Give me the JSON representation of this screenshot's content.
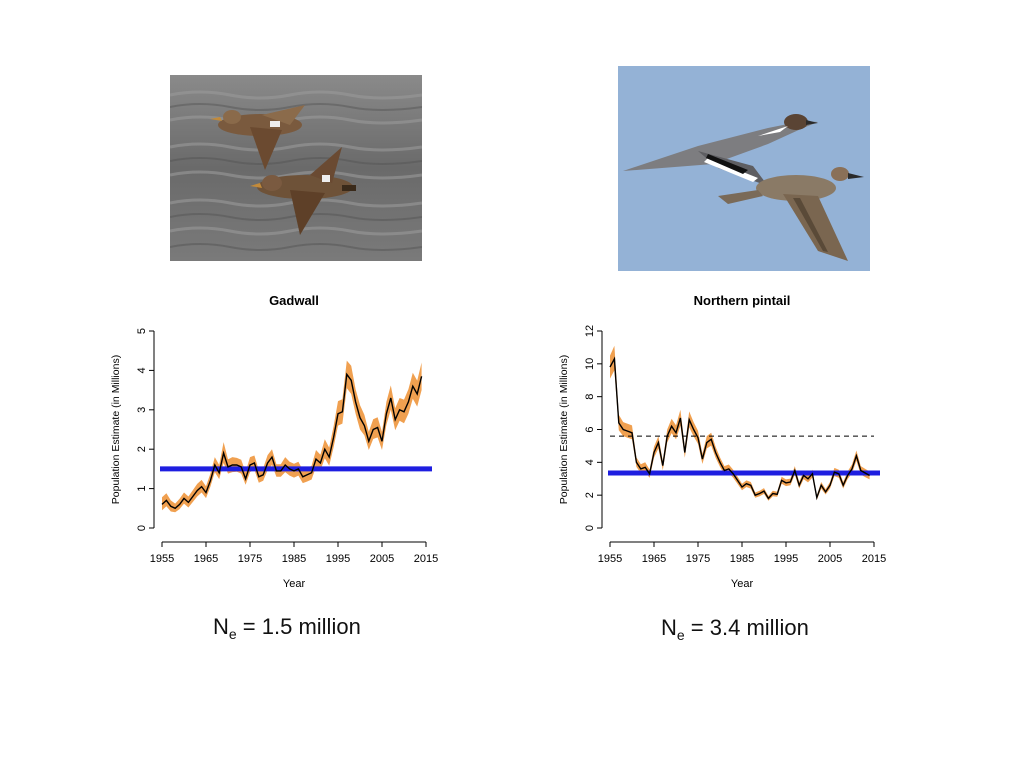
{
  "panels": {
    "gadwall": {
      "photo_alt": "Gadwall",
      "ne": {
        "symbol": "N",
        "subscript": "e",
        "text": " = 1.5 million"
      }
    },
    "pintail": {
      "photo_alt": "Northern pintail",
      "ne": {
        "symbol": "N",
        "subscript": "e",
        "text": " = 3.4 million"
      }
    }
  },
  "colors": {
    "band": "#f0a050",
    "line": "#000000",
    "ne_line": "#1e1ee0",
    "dashed": "#000000",
    "photo_water": "#6e6e6e",
    "photo_sky": "#94b2d6"
  },
  "chart_data": [
    {
      "type": "line",
      "title": "Gadwall",
      "xlabel": "Year",
      "ylabel": "Population Estimate (in Millions)",
      "xlim": [
        1955,
        2015
      ],
      "ylim": [
        0,
        5
      ],
      "xticks": [
        1955,
        1965,
        1975,
        1985,
        1995,
        2005,
        2015
      ],
      "yticks": [
        0,
        1,
        2,
        3,
        4,
        5
      ],
      "x": [
        1955,
        1956,
        1957,
        1958,
        1959,
        1960,
        1961,
        1962,
        1963,
        1964,
        1965,
        1966,
        1967,
        1968,
        1969,
        1970,
        1971,
        1972,
        1973,
        1974,
        1975,
        1976,
        1977,
        1978,
        1979,
        1980,
        1981,
        1982,
        1983,
        1984,
        1985,
        1986,
        1987,
        1988,
        1989,
        1990,
        1991,
        1992,
        1993,
        1994,
        1995,
        1996,
        1997,
        1998,
        1999,
        2000,
        2001,
        2002,
        2003,
        2004,
        2005,
        2006,
        2007,
        2008,
        2009,
        2010,
        2011,
        2012,
        2013,
        2014
      ],
      "series": [
        {
          "values": [
            0.6,
            0.7,
            0.55,
            0.5,
            0.6,
            0.75,
            0.65,
            0.8,
            0.95,
            1.05,
            0.9,
            1.2,
            1.6,
            1.4,
            1.9,
            1.55,
            1.6,
            1.6,
            1.55,
            1.25,
            1.6,
            1.65,
            1.3,
            1.35,
            1.65,
            1.8,
            1.45,
            1.45,
            1.6,
            1.5,
            1.45,
            1.5,
            1.3,
            1.35,
            1.4,
            1.75,
            1.65,
            2.0,
            1.8,
            2.3,
            2.9,
            2.95,
            3.9,
            3.75,
            3.2,
            2.8,
            2.6,
            2.2,
            2.5,
            2.55,
            2.2,
            2.9,
            3.3,
            2.75,
            3.0,
            2.95,
            3.2,
            3.6,
            3.4,
            3.85
          ],
          "lower": [
            0.45,
            0.55,
            0.42,
            0.4,
            0.48,
            0.62,
            0.52,
            0.66,
            0.8,
            0.9,
            0.76,
            1.05,
            1.42,
            1.24,
            1.65,
            1.38,
            1.42,
            1.43,
            1.38,
            1.1,
            1.42,
            1.48,
            1.15,
            1.2,
            1.47,
            1.6,
            1.3,
            1.3,
            1.42,
            1.33,
            1.28,
            1.33,
            1.14,
            1.18,
            1.23,
            1.55,
            1.46,
            1.77,
            1.58,
            2.05,
            2.6,
            2.65,
            3.55,
            3.4,
            2.9,
            2.5,
            2.35,
            1.98,
            2.26,
            2.3,
            1.98,
            2.62,
            3.0,
            2.48,
            2.72,
            2.66,
            2.9,
            3.28,
            3.08,
            3.5
          ],
          "upper": [
            0.78,
            0.88,
            0.7,
            0.62,
            0.74,
            0.9,
            0.8,
            0.96,
            1.12,
            1.22,
            1.06,
            1.38,
            1.8,
            1.6,
            2.18,
            1.74,
            1.8,
            1.78,
            1.73,
            1.42,
            1.8,
            1.84,
            1.47,
            1.52,
            1.85,
            2.0,
            1.62,
            1.62,
            1.8,
            1.68,
            1.63,
            1.68,
            1.47,
            1.52,
            1.58,
            1.98,
            1.86,
            2.25,
            2.04,
            2.58,
            3.22,
            3.27,
            4.25,
            4.12,
            3.52,
            3.12,
            2.87,
            2.44,
            2.76,
            2.81,
            2.44,
            3.2,
            3.62,
            3.04,
            3.3,
            3.26,
            3.52,
            3.94,
            3.74,
            4.2
          ]
        }
      ],
      "ne_line": 1.5,
      "dashed_line": null
    },
    {
      "type": "line",
      "title": "Northern pintail",
      "xlabel": "Year",
      "ylabel": "Population Estimate (in Millions)",
      "xlim": [
        1955,
        2015
      ],
      "ylim": [
        0,
        12
      ],
      "xticks": [
        1955,
        1965,
        1975,
        1985,
        1995,
        2005,
        2015
      ],
      "yticks": [
        0,
        2,
        4,
        6,
        8,
        10,
        12
      ],
      "x": [
        1955,
        1956,
        1957,
        1958,
        1959,
        1960,
        1961,
        1962,
        1963,
        1964,
        1965,
        1966,
        1967,
        1968,
        1969,
        1970,
        1971,
        1972,
        1973,
        1974,
        1975,
        1976,
        1977,
        1978,
        1979,
        1980,
        1981,
        1982,
        1983,
        1984,
        1985,
        1986,
        1987,
        1988,
        1989,
        1990,
        1991,
        1992,
        1993,
        1994,
        1995,
        1996,
        1997,
        1998,
        1999,
        2000,
        2001,
        2002,
        2003,
        2004,
        2005,
        2006,
        2007,
        2008,
        2009,
        2010,
        2011,
        2012,
        2013,
        2014
      ],
      "series": [
        {
          "values": [
            9.8,
            10.3,
            6.4,
            6.0,
            5.9,
            5.8,
            4.0,
            3.6,
            3.7,
            3.3,
            4.6,
            5.2,
            3.8,
            5.6,
            6.2,
            5.8,
            6.7,
            4.6,
            6.6,
            6.0,
            5.5,
            4.2,
            5.2,
            5.4,
            4.6,
            4.0,
            3.5,
            3.6,
            3.3,
            2.9,
            2.5,
            2.7,
            2.6,
            2.0,
            2.1,
            2.25,
            1.8,
            2.1,
            2.05,
            2.9,
            2.75,
            2.8,
            3.5,
            2.6,
            3.2,
            3.0,
            3.3,
            1.85,
            2.6,
            2.2,
            2.6,
            3.4,
            3.3,
            2.6,
            3.2,
            3.6,
            4.4,
            3.5,
            3.35,
            3.2
          ],
          "lower": [
            9.1,
            9.6,
            5.95,
            5.6,
            5.5,
            5.4,
            3.72,
            3.34,
            3.44,
            3.05,
            4.28,
            4.84,
            3.52,
            5.2,
            5.78,
            5.4,
            6.24,
            4.28,
            6.14,
            5.58,
            5.12,
            3.9,
            4.84,
            5.02,
            4.28,
            3.72,
            3.25,
            3.35,
            3.06,
            2.68,
            2.3,
            2.5,
            2.4,
            1.84,
            1.94,
            2.08,
            1.66,
            1.94,
            1.9,
            2.7,
            2.55,
            2.6,
            3.25,
            2.4,
            2.98,
            2.78,
            3.07,
            1.7,
            2.4,
            2.04,
            2.4,
            3.16,
            3.06,
            2.4,
            2.98,
            3.34,
            4.1,
            3.25,
            3.1,
            2.96
          ],
          "upper": [
            10.5,
            11.1,
            6.9,
            6.45,
            6.35,
            6.25,
            4.3,
            3.88,
            4.0,
            3.56,
            4.95,
            5.6,
            4.1,
            6.0,
            6.65,
            6.25,
            7.2,
            4.95,
            7.1,
            6.45,
            5.92,
            4.52,
            5.6,
            5.8,
            4.95,
            4.3,
            3.77,
            3.87,
            3.55,
            3.12,
            2.7,
            2.9,
            2.8,
            2.16,
            2.27,
            2.43,
            1.95,
            2.27,
            2.21,
            3.12,
            2.96,
            3.01,
            3.77,
            2.8,
            3.44,
            3.23,
            3.55,
            2.0,
            2.8,
            2.37,
            2.8,
            3.66,
            3.55,
            2.8,
            3.44,
            3.87,
            4.72,
            3.77,
            3.6,
            3.44
          ]
        }
      ],
      "ne_line": 3.35,
      "dashed_line": 5.6
    }
  ]
}
